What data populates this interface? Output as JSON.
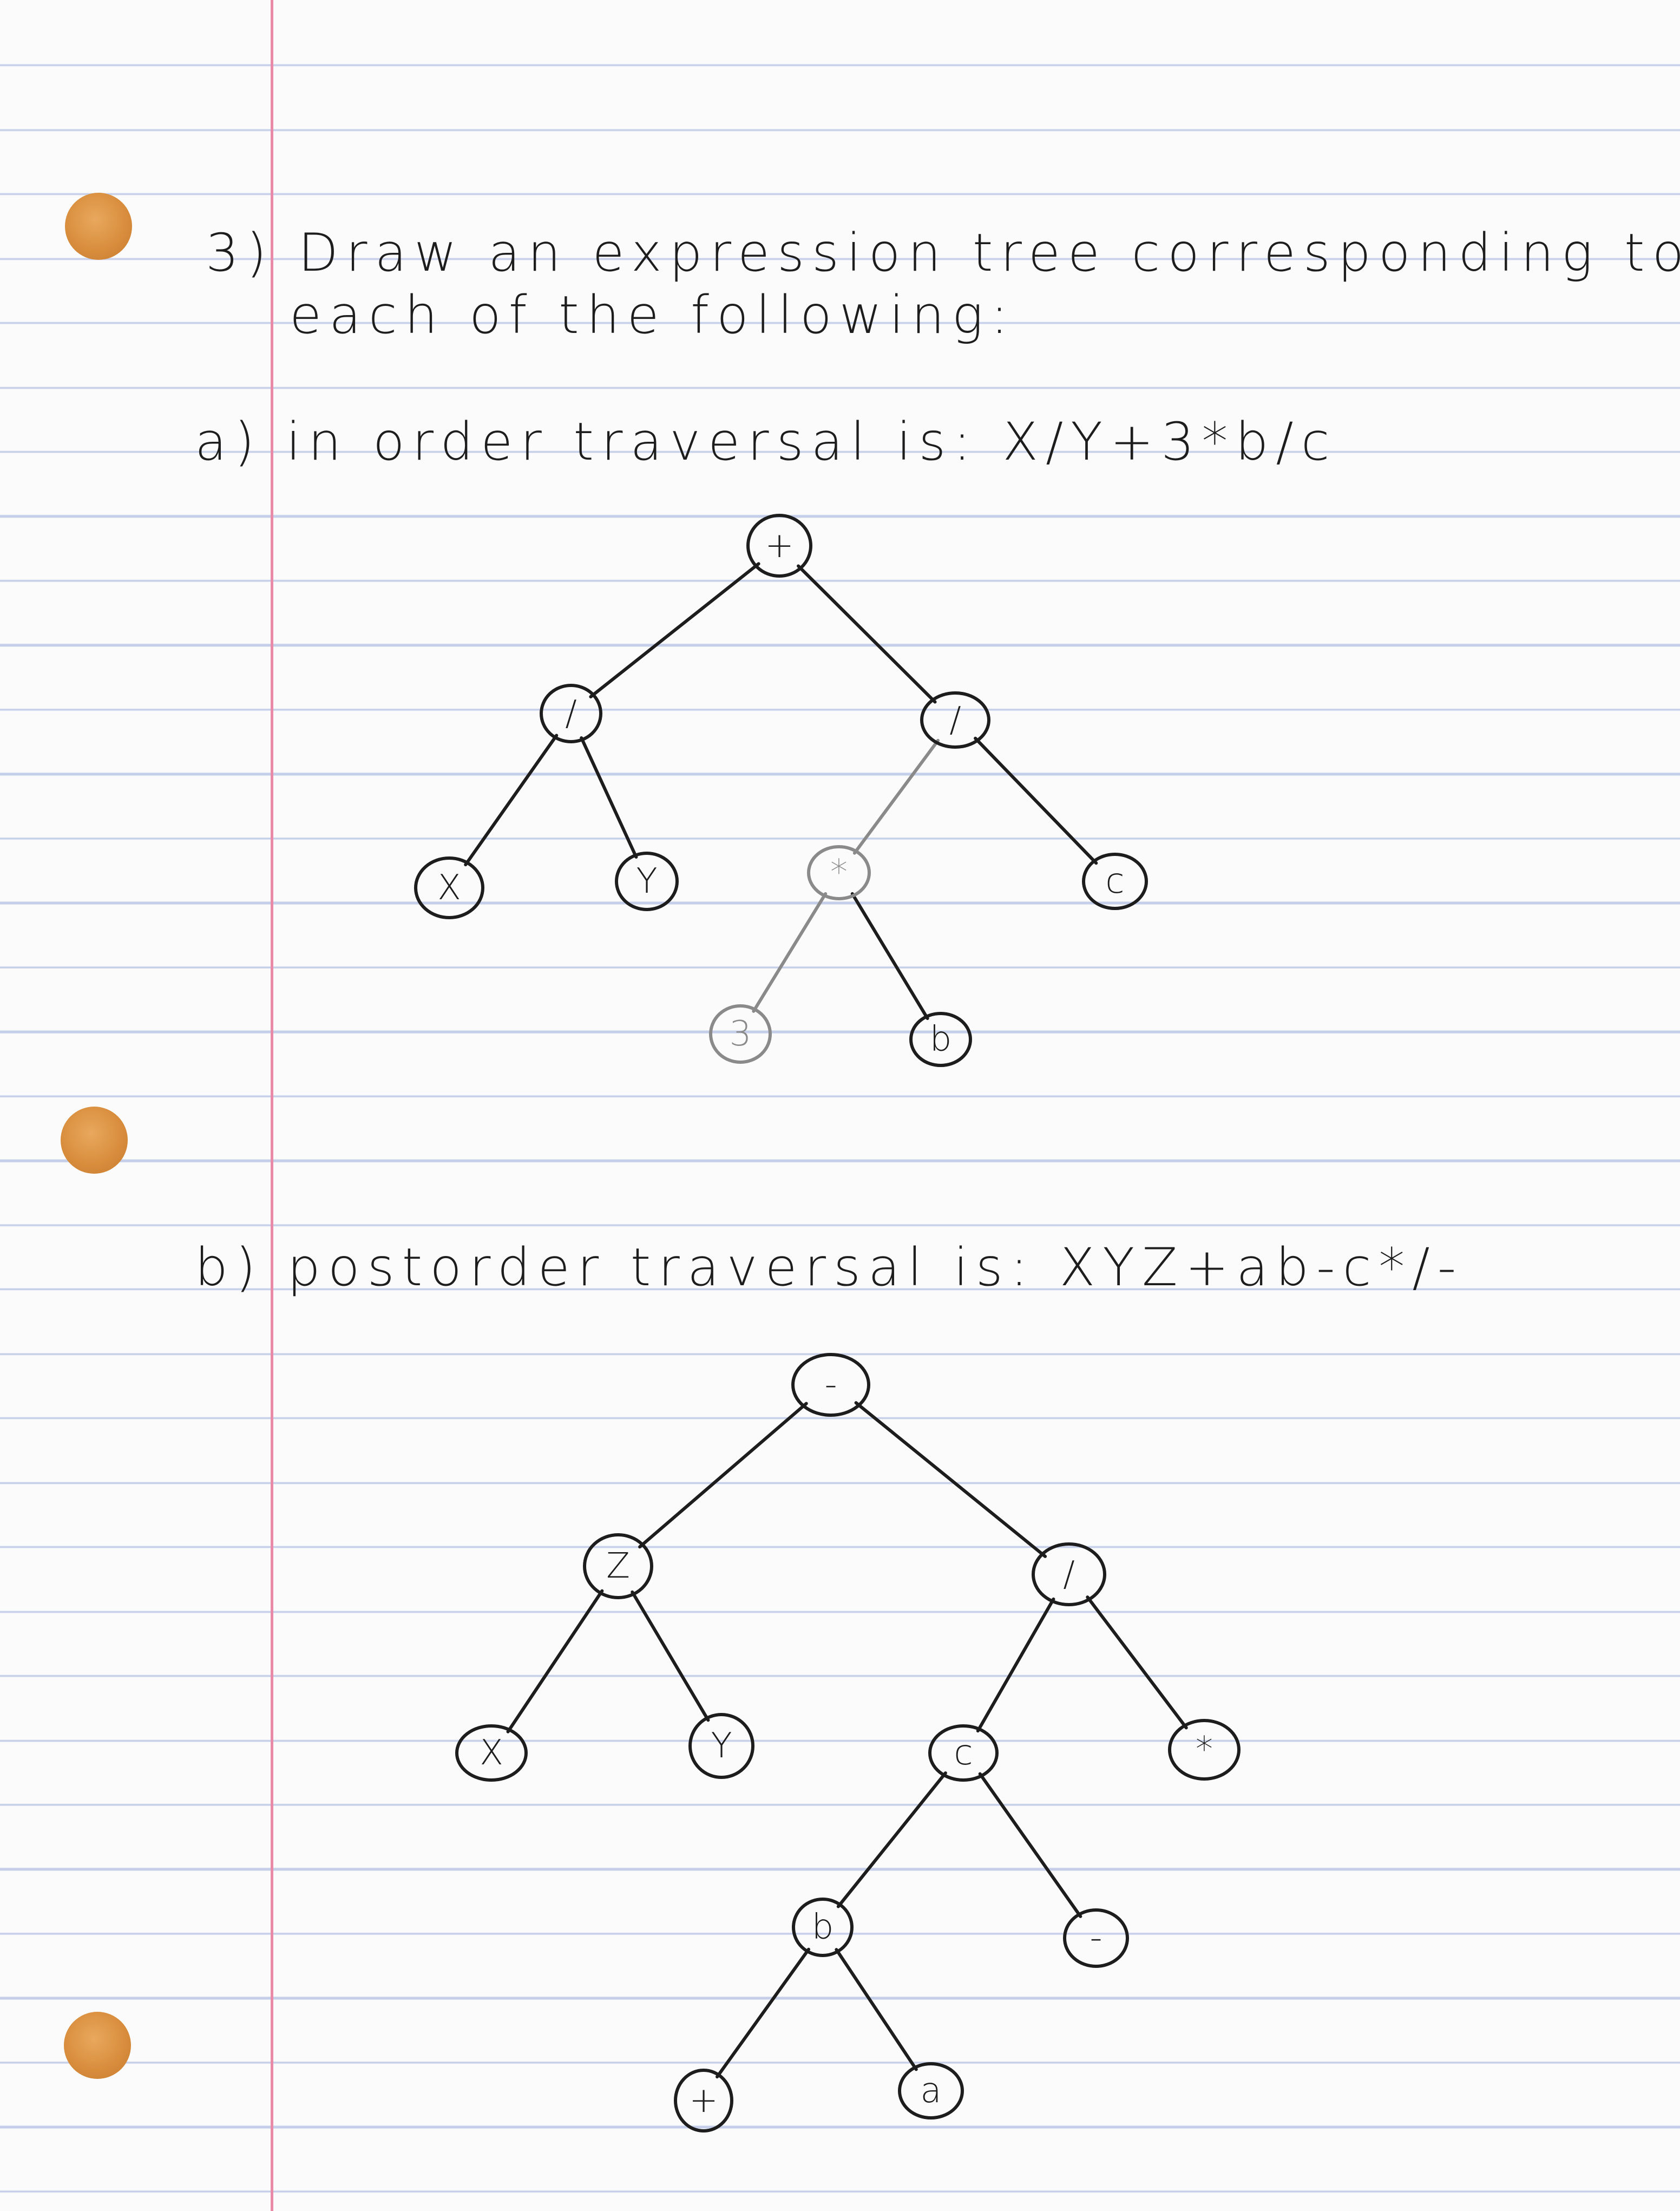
{
  "question": {
    "number": "3)",
    "line1": "Draw an expression tree corresponding to",
    "line2": "each of the following:"
  },
  "part_a": {
    "label": "a)",
    "text": "in order traversal is: X/Y+3*b/c",
    "tree": {
      "nodes": [
        {
          "id": "a1",
          "label": "+"
        },
        {
          "id": "a2",
          "label": "/"
        },
        {
          "id": "a3",
          "label": "/"
        },
        {
          "id": "a4",
          "label": "X"
        },
        {
          "id": "a5",
          "label": "Y"
        },
        {
          "id": "a6",
          "label": "*"
        },
        {
          "id": "a7",
          "label": "c"
        },
        {
          "id": "a8",
          "label": "3"
        },
        {
          "id": "a9",
          "label": "b"
        }
      ],
      "edges": [
        [
          "a1",
          "a2"
        ],
        [
          "a1",
          "a3"
        ],
        [
          "a2",
          "a4"
        ],
        [
          "a2",
          "a5"
        ],
        [
          "a3",
          "a6"
        ],
        [
          "a3",
          "a7"
        ],
        [
          "a6",
          "a8"
        ],
        [
          "a6",
          "a9"
        ]
      ]
    }
  },
  "part_b": {
    "label": "b)",
    "text": "postorder traversal is: XYZ+ab-c*/-",
    "tree": {
      "nodes": [
        {
          "id": "b1",
          "label": "-"
        },
        {
          "id": "b2",
          "label": "Z"
        },
        {
          "id": "b3",
          "label": "/"
        },
        {
          "id": "b4",
          "label": "X"
        },
        {
          "id": "b5",
          "label": "Y"
        },
        {
          "id": "b6",
          "label": "c"
        },
        {
          "id": "b7",
          "label": "*"
        },
        {
          "id": "b8",
          "label": "b"
        },
        {
          "id": "b9",
          "label": "-"
        },
        {
          "id": "b10",
          "label": "+"
        },
        {
          "id": "b11",
          "label": "a"
        }
      ],
      "edges": [
        [
          "b1",
          "b2"
        ],
        [
          "b1",
          "b3"
        ],
        [
          "b2",
          "b4"
        ],
        [
          "b2",
          "b5"
        ],
        [
          "b3",
          "b6"
        ],
        [
          "b3",
          "b7"
        ],
        [
          "b6",
          "b8"
        ],
        [
          "b6",
          "b9"
        ],
        [
          "b8",
          "b10"
        ],
        [
          "b8",
          "b11"
        ]
      ]
    }
  },
  "colors": {
    "ink": "#1d1d1d",
    "pencil_gray": "#8a8a8a",
    "rule_blue": "#c4cee8",
    "margin_red": "#e88aa8",
    "hole_orange": "#d98e3e"
  }
}
